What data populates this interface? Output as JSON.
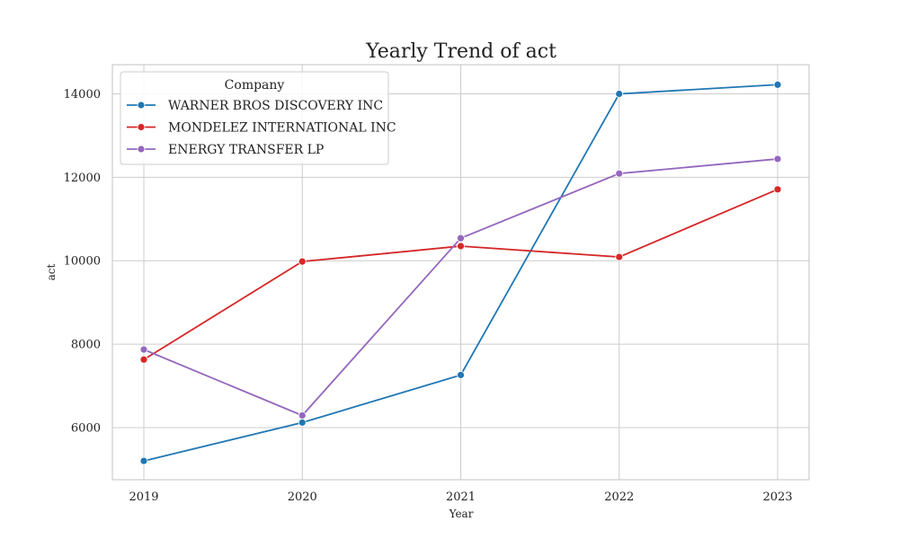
{
  "chart_data": {
    "type": "line",
    "title": "Yearly Trend of act",
    "xlabel": "Year",
    "ylabel": "act",
    "x": [
      "2019",
      "2020",
      "2021",
      "2022",
      "2023"
    ],
    "yticks": [
      6000,
      8000,
      10000,
      12000,
      14000
    ],
    "ylim": [
      4750,
      14700
    ],
    "grid": true,
    "legend": {
      "title": "Company",
      "placement": "top-left"
    },
    "series": [
      {
        "name": "WARNER BROS DISCOVERY INC",
        "color": "#1f77b4",
        "values": [
          5200,
          6120,
          7260,
          14000,
          14220
        ]
      },
      {
        "name": "MONDELEZ INTERNATIONAL INC",
        "color": "#d62728",
        "values": [
          7630,
          9980,
          10350,
          10090,
          11710
        ]
      },
      {
        "name": "ENERGY TRANSFER LP",
        "color": "#9467bd",
        "values": [
          7870,
          6290,
          10540,
          12090,
          12440
        ]
      }
    ]
  }
}
